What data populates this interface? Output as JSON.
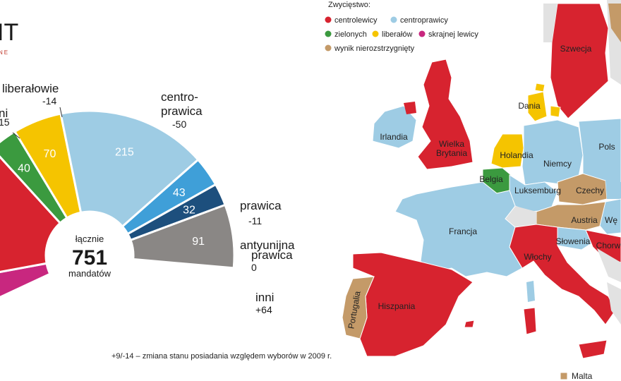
{
  "chart_data": {
    "type": "pie",
    "subtype": "semicircle-parliament",
    "total": 751,
    "center_label_top": "łącznie",
    "center_value": "751",
    "center_label_bottom": "mandatów",
    "segments": [
      {
        "key": "skrajna_lewica",
        "value": null,
        "value_label": "",
        "color": "#c8277f"
      },
      {
        "key": "centrolewica",
        "value": null,
        "value_label": "",
        "color": "#d7232f"
      },
      {
        "key": "zieloni",
        "value": 40,
        "value_label": "40",
        "color": "#3b9a3f"
      },
      {
        "key": "liberalowie",
        "value": 70,
        "value_label": "70",
        "color": "#f5c400"
      },
      {
        "key": "centroprawica",
        "value": 215,
        "value_label": "215",
        "color": "#9ecce4"
      },
      {
        "key": "prawica",
        "value": 43,
        "value_label": "43",
        "color": "#3f9fd8"
      },
      {
        "key": "antyunijna_prawica",
        "value": 32,
        "value_label": "32",
        "color": "#1d4f7d"
      },
      {
        "key": "inni",
        "value": 91,
        "value_label": "91",
        "color": "#8a8785"
      }
    ],
    "callouts": [
      {
        "key": "zieloni",
        "name": "ni",
        "change": "15"
      },
      {
        "key": "liberalowie",
        "name": "liberałowie",
        "change": "-14"
      },
      {
        "key": "centroprawica",
        "name_line1": "centro-",
        "name_line2": "prawica",
        "change": "-50"
      },
      {
        "key": "prawica",
        "name": "prawica",
        "change": "-11"
      },
      {
        "key": "antyunijna_prawica",
        "name_line1": "antyunijna",
        "name_line2": "prawica",
        "change": "0"
      },
      {
        "key": "inni",
        "name": "inni",
        "change": "+64"
      }
    ],
    "footnote": "+9/-14 – zmiana stanu posiadania względem wyborów w 2009 r."
  },
  "logo_fragment": "IT",
  "logo_sub_fragment": "NE",
  "map": {
    "legend": {
      "title": "Zwycięstwo:",
      "items": [
        {
          "label": "centrolewicy",
          "color": "#d7232f"
        },
        {
          "label": "centroprawicy",
          "color": "#9ecce4"
        },
        {
          "label": "zielonych",
          "color": "#3b9a3f"
        },
        {
          "label": "liberałów",
          "color": "#f5c400"
        },
        {
          "label": "skrajnej lewicy",
          "color": "#c8277f"
        },
        {
          "label": "wynik nierozstrzygnięty",
          "color": "#c49a68"
        }
      ]
    },
    "countries": [
      {
        "name": "Szwecja",
        "result": "centrolewicy"
      },
      {
        "name": "Dania",
        "result": "liberałów"
      },
      {
        "name": "Irlandia",
        "result": "centroprawicy"
      },
      {
        "name": "Wielka Brytania",
        "result": "centrolewicy"
      },
      {
        "name": "Holandia",
        "result": "liberałów"
      },
      {
        "name": "Niemcy",
        "result": "centroprawicy"
      },
      {
        "name": "Polska",
        "label": "Pols",
        "result": "centroprawicy"
      },
      {
        "name": "Belgia",
        "result": "zielonych"
      },
      {
        "name": "Luksemburg",
        "result": "centroprawicy"
      },
      {
        "name": "Czechy",
        "result": "wynik nierozstrzygnięty"
      },
      {
        "name": "Francja",
        "result": "centroprawicy"
      },
      {
        "name": "Austria",
        "result": "wynik nierozstrzygnięty"
      },
      {
        "name": "Węgry",
        "label": "Wę",
        "result": "centroprawicy"
      },
      {
        "name": "Słowenia",
        "result": "centroprawicy"
      },
      {
        "name": "Chorwacja",
        "label": "Chorw",
        "result": "centrolewicy"
      },
      {
        "name": "Włochy",
        "result": "centrolewicy"
      },
      {
        "name": "Portugalia",
        "result": "wynik nierozstrzygnięty"
      },
      {
        "name": "Hiszpania",
        "result": "centrolewicy"
      },
      {
        "name": "Malta",
        "result": "wynik nierozstrzygnięty"
      }
    ]
  }
}
